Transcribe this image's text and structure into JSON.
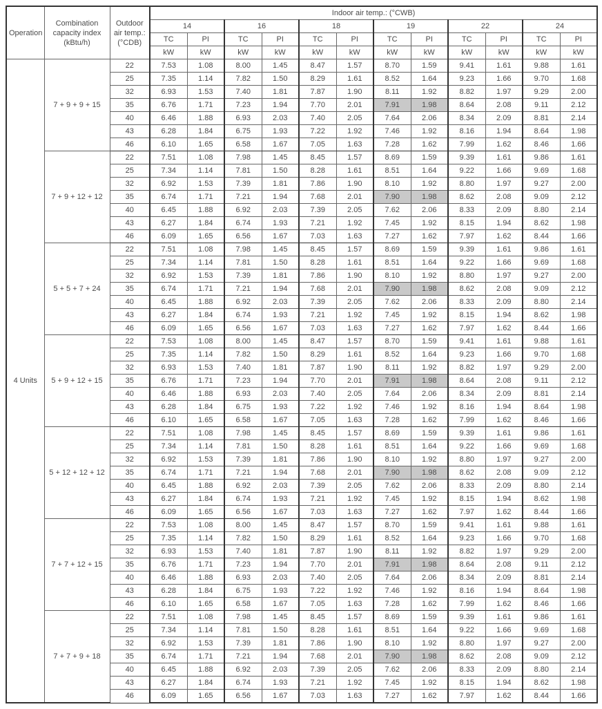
{
  "header": {
    "operation": "Operation",
    "combo_l1": "Combination",
    "combo_l2": "capacity index",
    "combo_l3": "(kBtu/h)",
    "outdoor_l1": "Outdoor",
    "outdoor_l2": "air temp.:",
    "outdoor_l3": "(°CDB)",
    "indoor_title": "Indoor air temp.: (°CWB)",
    "temps": [
      "14",
      "16",
      "18",
      "19",
      "22",
      "24"
    ],
    "tc": "TC",
    "pi": "PI",
    "kw": "kW"
  },
  "operation_label": "4 Units",
  "highlight_bg": "#c9c9c9",
  "groups": [
    {
      "combo": "7 + 9 + 9 + 15",
      "rows": [
        {
          "out": "22",
          "v": [
            "7.53",
            "1.08",
            "8.00",
            "1.45",
            "8.47",
            "1.57",
            "8.70",
            "1.59",
            "9.41",
            "1.61",
            "9.88",
            "1.61"
          ],
          "hl": []
        },
        {
          "out": "25",
          "v": [
            "7.35",
            "1.14",
            "7.82",
            "1.50",
            "8.29",
            "1.61",
            "8.52",
            "1.64",
            "9.23",
            "1.66",
            "9.70",
            "1.68"
          ],
          "hl": []
        },
        {
          "out": "32",
          "v": [
            "6.93",
            "1.53",
            "7.40",
            "1.81",
            "7.87",
            "1.90",
            "8.11",
            "1.92",
            "8.82",
            "1.97",
            "9.29",
            "2.00"
          ],
          "hl": []
        },
        {
          "out": "35",
          "v": [
            "6.76",
            "1.71",
            "7.23",
            "1.94",
            "7.70",
            "2.01",
            "7.91",
            "1.98",
            "8.64",
            "2.08",
            "9.11",
            "2.12"
          ],
          "hl": [
            6,
            7
          ]
        },
        {
          "out": "40",
          "v": [
            "6.46",
            "1.88",
            "6.93",
            "2.03",
            "7.40",
            "2.05",
            "7.64",
            "2.06",
            "8.34",
            "2.09",
            "8.81",
            "2.14"
          ],
          "hl": []
        },
        {
          "out": "43",
          "v": [
            "6.28",
            "1.84",
            "6.75",
            "1.93",
            "7.22",
            "1.92",
            "7.46",
            "1.92",
            "8.16",
            "1.94",
            "8.64",
            "1.98"
          ],
          "hl": []
        },
        {
          "out": "46",
          "v": [
            "6.10",
            "1.65",
            "6.58",
            "1.67",
            "7.05",
            "1.63",
            "7.28",
            "1.62",
            "7.99",
            "1.62",
            "8.46",
            "1.66"
          ],
          "hl": []
        }
      ]
    },
    {
      "combo": "7 + 9 + 12 + 12",
      "rows": [
        {
          "out": "22",
          "v": [
            "7.51",
            "1.08",
            "7.98",
            "1.45",
            "8.45",
            "1.57",
            "8.69",
            "1.59",
            "9.39",
            "1.61",
            "9.86",
            "1.61"
          ],
          "hl": []
        },
        {
          "out": "25",
          "v": [
            "7.34",
            "1.14",
            "7.81",
            "1.50",
            "8.28",
            "1.61",
            "8.51",
            "1.64",
            "9.22",
            "1.66",
            "9.69",
            "1.68"
          ],
          "hl": []
        },
        {
          "out": "32",
          "v": [
            "6.92",
            "1.53",
            "7.39",
            "1.81",
            "7.86",
            "1.90",
            "8.10",
            "1.92",
            "8.80",
            "1.97",
            "9.27",
            "2.00"
          ],
          "hl": []
        },
        {
          "out": "35",
          "v": [
            "6.74",
            "1.71",
            "7.21",
            "1.94",
            "7.68",
            "2.01",
            "7.90",
            "1.98",
            "8.62",
            "2.08",
            "9.09",
            "2.12"
          ],
          "hl": [
            6,
            7
          ]
        },
        {
          "out": "40",
          "v": [
            "6.45",
            "1.88",
            "6.92",
            "2.03",
            "7.39",
            "2.05",
            "7.62",
            "2.06",
            "8.33",
            "2.09",
            "8.80",
            "2.14"
          ],
          "hl": []
        },
        {
          "out": "43",
          "v": [
            "6.27",
            "1.84",
            "6.74",
            "1.93",
            "7.21",
            "1.92",
            "7.45",
            "1.92",
            "8.15",
            "1.94",
            "8.62",
            "1.98"
          ],
          "hl": []
        },
        {
          "out": "46",
          "v": [
            "6.09",
            "1.65",
            "6.56",
            "1.67",
            "7.03",
            "1.63",
            "7.27",
            "1.62",
            "7.97",
            "1.62",
            "8.44",
            "1.66"
          ],
          "hl": []
        }
      ]
    },
    {
      "combo": "5 + 5 + 7 + 24",
      "rows": [
        {
          "out": "22",
          "v": [
            "7.51",
            "1.08",
            "7.98",
            "1.45",
            "8.45",
            "1.57",
            "8.69",
            "1.59",
            "9.39",
            "1.61",
            "9.86",
            "1.61"
          ],
          "hl": []
        },
        {
          "out": "25",
          "v": [
            "7.34",
            "1.14",
            "7.81",
            "1.50",
            "8.28",
            "1.61",
            "8.51",
            "1.64",
            "9.22",
            "1.66",
            "9.69",
            "1.68"
          ],
          "hl": []
        },
        {
          "out": "32",
          "v": [
            "6.92",
            "1.53",
            "7.39",
            "1.81",
            "7.86",
            "1.90",
            "8.10",
            "1.92",
            "8.80",
            "1.97",
            "9.27",
            "2.00"
          ],
          "hl": []
        },
        {
          "out": "35",
          "v": [
            "6.74",
            "1.71",
            "7.21",
            "1.94",
            "7.68",
            "2.01",
            "7.90",
            "1.98",
            "8.62",
            "2.08",
            "9.09",
            "2.12"
          ],
          "hl": [
            6,
            7
          ]
        },
        {
          "out": "40",
          "v": [
            "6.45",
            "1.88",
            "6.92",
            "2.03",
            "7.39",
            "2.05",
            "7.62",
            "2.06",
            "8.33",
            "2.09",
            "8.80",
            "2.14"
          ],
          "hl": []
        },
        {
          "out": "43",
          "v": [
            "6.27",
            "1.84",
            "6.74",
            "1.93",
            "7.21",
            "1.92",
            "7.45",
            "1.92",
            "8.15",
            "1.94",
            "8.62",
            "1.98"
          ],
          "hl": []
        },
        {
          "out": "46",
          "v": [
            "6.09",
            "1.65",
            "6.56",
            "1.67",
            "7.03",
            "1.63",
            "7.27",
            "1.62",
            "7.97",
            "1.62",
            "8.44",
            "1.66"
          ],
          "hl": []
        }
      ]
    },
    {
      "combo": "5 + 9 + 12 + 15",
      "rows": [
        {
          "out": "22",
          "v": [
            "7.53",
            "1.08",
            "8.00",
            "1.45",
            "8.47",
            "1.57",
            "8.70",
            "1.59",
            "9.41",
            "1.61",
            "9.88",
            "1.61"
          ],
          "hl": []
        },
        {
          "out": "25",
          "v": [
            "7.35",
            "1.14",
            "7.82",
            "1.50",
            "8.29",
            "1.61",
            "8.52",
            "1.64",
            "9.23",
            "1.66",
            "9.70",
            "1.68"
          ],
          "hl": []
        },
        {
          "out": "32",
          "v": [
            "6.93",
            "1.53",
            "7.40",
            "1.81",
            "7.87",
            "1.90",
            "8.11",
            "1.92",
            "8.82",
            "1.97",
            "9.29",
            "2.00"
          ],
          "hl": []
        },
        {
          "out": "35",
          "v": [
            "6.76",
            "1.71",
            "7.23",
            "1.94",
            "7.70",
            "2.01",
            "7.91",
            "1.98",
            "8.64",
            "2.08",
            "9.11",
            "2.12"
          ],
          "hl": [
            6,
            7
          ]
        },
        {
          "out": "40",
          "v": [
            "6.46",
            "1.88",
            "6.93",
            "2.03",
            "7.40",
            "2.05",
            "7.64",
            "2.06",
            "8.34",
            "2.09",
            "8.81",
            "2.14"
          ],
          "hl": []
        },
        {
          "out": "43",
          "v": [
            "6.28",
            "1.84",
            "6.75",
            "1.93",
            "7.22",
            "1.92",
            "7.46",
            "1.92",
            "8.16",
            "1.94",
            "8.64",
            "1.98"
          ],
          "hl": []
        },
        {
          "out": "46",
          "v": [
            "6.10",
            "1.65",
            "6.58",
            "1.67",
            "7.05",
            "1.63",
            "7.28",
            "1.62",
            "7.99",
            "1.62",
            "8.46",
            "1.66"
          ],
          "hl": []
        }
      ]
    },
    {
      "combo": "5 + 12 + 12 + 12",
      "rows": [
        {
          "out": "22",
          "v": [
            "7.51",
            "1.08",
            "7.98",
            "1.45",
            "8.45",
            "1.57",
            "8.69",
            "1.59",
            "9.39",
            "1.61",
            "9.86",
            "1.61"
          ],
          "hl": []
        },
        {
          "out": "25",
          "v": [
            "7.34",
            "1.14",
            "7.81",
            "1.50",
            "8.28",
            "1.61",
            "8.51",
            "1.64",
            "9.22",
            "1.66",
            "9.69",
            "1.68"
          ],
          "hl": []
        },
        {
          "out": "32",
          "v": [
            "6.92",
            "1.53",
            "7.39",
            "1.81",
            "7.86",
            "1.90",
            "8.10",
            "1.92",
            "8.80",
            "1.97",
            "9.27",
            "2.00"
          ],
          "hl": []
        },
        {
          "out": "35",
          "v": [
            "6.74",
            "1.71",
            "7.21",
            "1.94",
            "7.68",
            "2.01",
            "7.90",
            "1.98",
            "8.62",
            "2.08",
            "9.09",
            "2.12"
          ],
          "hl": [
            6,
            7
          ]
        },
        {
          "out": "40",
          "v": [
            "6.45",
            "1.88",
            "6.92",
            "2.03",
            "7.39",
            "2.05",
            "7.62",
            "2.06",
            "8.33",
            "2.09",
            "8.80",
            "2.14"
          ],
          "hl": []
        },
        {
          "out": "43",
          "v": [
            "6.27",
            "1.84",
            "6.74",
            "1.93",
            "7.21",
            "1.92",
            "7.45",
            "1.92",
            "8.15",
            "1.94",
            "8.62",
            "1.98"
          ],
          "hl": []
        },
        {
          "out": "46",
          "v": [
            "6.09",
            "1.65",
            "6.56",
            "1.67",
            "7.03",
            "1.63",
            "7.27",
            "1.62",
            "7.97",
            "1.62",
            "8.44",
            "1.66"
          ],
          "hl": []
        }
      ]
    },
    {
      "combo": "7 + 7 + 12 + 15",
      "rows": [
        {
          "out": "22",
          "v": [
            "7.53",
            "1.08",
            "8.00",
            "1.45",
            "8.47",
            "1.57",
            "8.70",
            "1.59",
            "9.41",
            "1.61",
            "9.88",
            "1.61"
          ],
          "hl": []
        },
        {
          "out": "25",
          "v": [
            "7.35",
            "1.14",
            "7.82",
            "1.50",
            "8.29",
            "1.61",
            "8.52",
            "1.64",
            "9.23",
            "1.66",
            "9.70",
            "1.68"
          ],
          "hl": []
        },
        {
          "out": "32",
          "v": [
            "6.93",
            "1.53",
            "7.40",
            "1.81",
            "7.87",
            "1.90",
            "8.11",
            "1.92",
            "8.82",
            "1.97",
            "9.29",
            "2.00"
          ],
          "hl": []
        },
        {
          "out": "35",
          "v": [
            "6.76",
            "1.71",
            "7.23",
            "1.94",
            "7.70",
            "2.01",
            "7.91",
            "1.98",
            "8.64",
            "2.08",
            "9.11",
            "2.12"
          ],
          "hl": [
            6,
            7
          ]
        },
        {
          "out": "40",
          "v": [
            "6.46",
            "1.88",
            "6.93",
            "2.03",
            "7.40",
            "2.05",
            "7.64",
            "2.06",
            "8.34",
            "2.09",
            "8.81",
            "2.14"
          ],
          "hl": []
        },
        {
          "out": "43",
          "v": [
            "6.28",
            "1.84",
            "6.75",
            "1.93",
            "7.22",
            "1.92",
            "7.46",
            "1.92",
            "8.16",
            "1.94",
            "8.64",
            "1.98"
          ],
          "hl": []
        },
        {
          "out": "46",
          "v": [
            "6.10",
            "1.65",
            "6.58",
            "1.67",
            "7.05",
            "1.63",
            "7.28",
            "1.62",
            "7.99",
            "1.62",
            "8.46",
            "1.66"
          ],
          "hl": []
        }
      ]
    },
    {
      "combo": "7 + 7 + 9 + 18",
      "rows": [
        {
          "out": "22",
          "v": [
            "7.51",
            "1.08",
            "7.98",
            "1.45",
            "8.45",
            "1.57",
            "8.69",
            "1.59",
            "9.39",
            "1.61",
            "9.86",
            "1.61"
          ],
          "hl": []
        },
        {
          "out": "25",
          "v": [
            "7.34",
            "1.14",
            "7.81",
            "1.50",
            "8.28",
            "1.61",
            "8.51",
            "1.64",
            "9.22",
            "1.66",
            "9.69",
            "1.68"
          ],
          "hl": []
        },
        {
          "out": "32",
          "v": [
            "6.92",
            "1.53",
            "7.39",
            "1.81",
            "7.86",
            "1.90",
            "8.10",
            "1.92",
            "8.80",
            "1.97",
            "9.27",
            "2.00"
          ],
          "hl": []
        },
        {
          "out": "35",
          "v": [
            "6.74",
            "1.71",
            "7.21",
            "1.94",
            "7.68",
            "2.01",
            "7.90",
            "1.98",
            "8.62",
            "2.08",
            "9.09",
            "2.12"
          ],
          "hl": [
            6,
            7
          ]
        },
        {
          "out": "40",
          "v": [
            "6.45",
            "1.88",
            "6.92",
            "2.03",
            "7.39",
            "2.05",
            "7.62",
            "2.06",
            "8.33",
            "2.09",
            "8.80",
            "2.14"
          ],
          "hl": []
        },
        {
          "out": "43",
          "v": [
            "6.27",
            "1.84",
            "6.74",
            "1.93",
            "7.21",
            "1.92",
            "7.45",
            "1.92",
            "8.15",
            "1.94",
            "8.62",
            "1.98"
          ],
          "hl": []
        },
        {
          "out": "46",
          "v": [
            "6.09",
            "1.65",
            "6.56",
            "1.67",
            "7.03",
            "1.63",
            "7.27",
            "1.62",
            "7.97",
            "1.62",
            "8.44",
            "1.66"
          ],
          "hl": []
        }
      ]
    }
  ]
}
